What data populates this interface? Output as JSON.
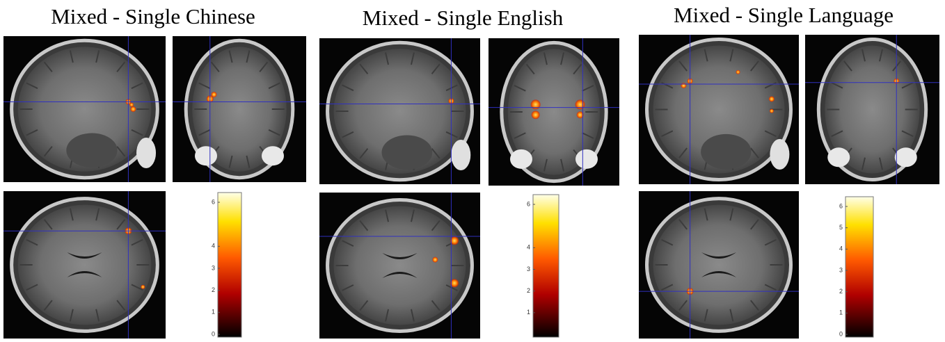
{
  "panels": [
    {
      "title": "Mixed - Single Chinese",
      "colorbar_ticks": [
        6,
        4,
        3,
        2,
        1,
        0
      ]
    },
    {
      "title": "Mixed - Single English",
      "colorbar_ticks": [
        6,
        4,
        3,
        2,
        1
      ]
    },
    {
      "title": "Mixed - Single Language",
      "colorbar_ticks": [
        6,
        5,
        4,
        3,
        2,
        1,
        0
      ]
    }
  ]
}
